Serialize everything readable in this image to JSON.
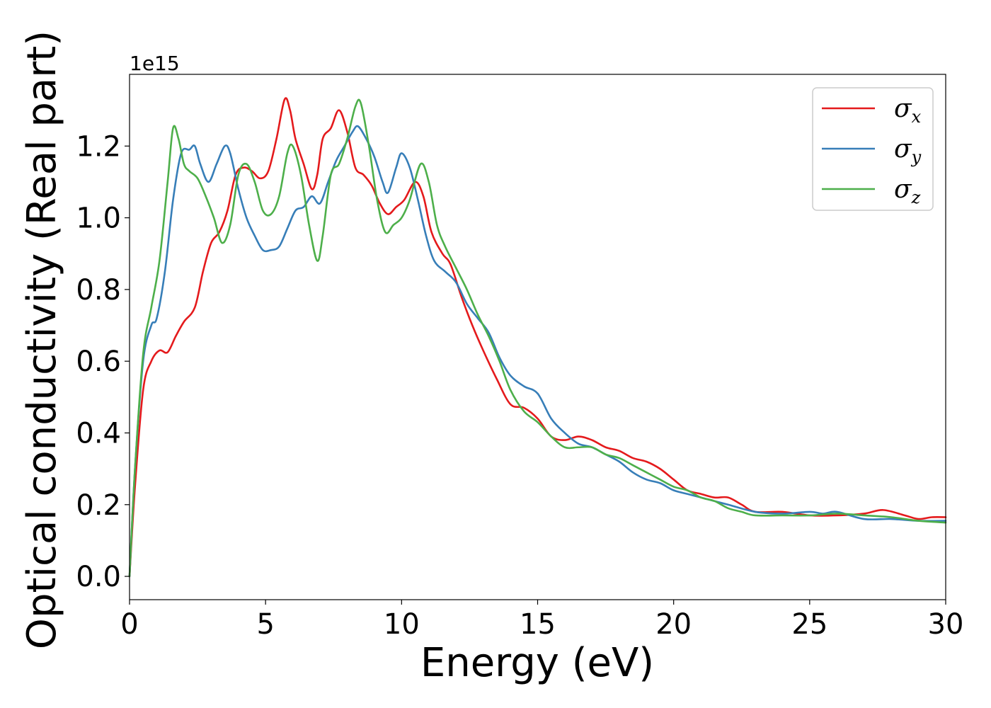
{
  "chart_data": {
    "type": "line",
    "xlabel": "Energy (eV)",
    "ylabel": "Optical conductivity (Real part)",
    "y_offset_label": "1e15",
    "xlim": [
      0,
      30
    ],
    "ylim": [
      -0.065,
      1.4
    ],
    "x_ticks": [
      0,
      5,
      10,
      15,
      20,
      25,
      30
    ],
    "x_tick_labels": [
      "0",
      "5",
      "10",
      "15",
      "20",
      "25",
      "30"
    ],
    "y_ticks": [
      0.0,
      0.2,
      0.4,
      0.6,
      0.8,
      1.0,
      1.2
    ],
    "y_tick_labels": [
      "0.0",
      "0.2",
      "0.4",
      "0.6",
      "0.8",
      "1.0",
      "1.2"
    ],
    "grid": false,
    "legend_position": "top-right",
    "series": [
      {
        "name": "σ_x",
        "symbol": "σ",
        "subscript": "x",
        "color": "#e41a1c",
        "points": [
          [
            0,
            0
          ],
          [
            0.2,
            0.25
          ],
          [
            0.5,
            0.52
          ],
          [
            0.8,
            0.6
          ],
          [
            1.1,
            0.63
          ],
          [
            1.4,
            0.625
          ],
          [
            1.7,
            0.67
          ],
          [
            2.0,
            0.71
          ],
          [
            2.4,
            0.75
          ],
          [
            2.7,
            0.85
          ],
          [
            3.0,
            0.93
          ],
          [
            3.3,
            0.96
          ],
          [
            3.6,
            1.02
          ],
          [
            3.9,
            1.12
          ],
          [
            4.2,
            1.14
          ],
          [
            4.5,
            1.13
          ],
          [
            4.8,
            1.11
          ],
          [
            5.1,
            1.13
          ],
          [
            5.4,
            1.22
          ],
          [
            5.7,
            1.33
          ],
          [
            5.9,
            1.3
          ],
          [
            6.1,
            1.22
          ],
          [
            6.4,
            1.15
          ],
          [
            6.7,
            1.08
          ],
          [
            6.9,
            1.12
          ],
          [
            7.1,
            1.22
          ],
          [
            7.4,
            1.25
          ],
          [
            7.7,
            1.3
          ],
          [
            8.0,
            1.24
          ],
          [
            8.3,
            1.14
          ],
          [
            8.6,
            1.12
          ],
          [
            8.9,
            1.09
          ],
          [
            9.2,
            1.04
          ],
          [
            9.5,
            1.01
          ],
          [
            9.8,
            1.03
          ],
          [
            10.1,
            1.05
          ],
          [
            10.5,
            1.1
          ],
          [
            10.8,
            1.06
          ],
          [
            11.1,
            0.96
          ],
          [
            11.5,
            0.9
          ],
          [
            11.8,
            0.87
          ],
          [
            12.2,
            0.78
          ],
          [
            12.6,
            0.7
          ],
          [
            13.0,
            0.63
          ],
          [
            13.5,
            0.55
          ],
          [
            14.0,
            0.48
          ],
          [
            14.5,
            0.47
          ],
          [
            15.0,
            0.44
          ],
          [
            15.5,
            0.39
          ],
          [
            16.0,
            0.38
          ],
          [
            16.5,
            0.39
          ],
          [
            17.0,
            0.38
          ],
          [
            17.5,
            0.36
          ],
          [
            18.0,
            0.35
          ],
          [
            18.5,
            0.33
          ],
          [
            19.0,
            0.32
          ],
          [
            19.5,
            0.3
          ],
          [
            20.0,
            0.27
          ],
          [
            20.5,
            0.24
          ],
          [
            21.0,
            0.23
          ],
          [
            21.5,
            0.22
          ],
          [
            22.0,
            0.22
          ],
          [
            22.5,
            0.2
          ],
          [
            23.0,
            0.18
          ],
          [
            24.0,
            0.18
          ],
          [
            25.0,
            0.17
          ],
          [
            26.0,
            0.17
          ],
          [
            27.0,
            0.175
          ],
          [
            27.7,
            0.185
          ],
          [
            28.5,
            0.17
          ],
          [
            29.0,
            0.16
          ],
          [
            29.5,
            0.165
          ],
          [
            30.0,
            0.165
          ]
        ]
      },
      {
        "name": "σ_y",
        "symbol": "σ",
        "subscript": "y",
        "color": "#377eb8",
        "points": [
          [
            0,
            0
          ],
          [
            0.2,
            0.3
          ],
          [
            0.5,
            0.6
          ],
          [
            0.8,
            0.7
          ],
          [
            1.0,
            0.72
          ],
          [
            1.3,
            0.85
          ],
          [
            1.6,
            1.05
          ],
          [
            1.9,
            1.18
          ],
          [
            2.2,
            1.19
          ],
          [
            2.4,
            1.2
          ],
          [
            2.6,
            1.15
          ],
          [
            2.9,
            1.1
          ],
          [
            3.2,
            1.15
          ],
          [
            3.5,
            1.2
          ],
          [
            3.7,
            1.18
          ],
          [
            4.0,
            1.08
          ],
          [
            4.3,
            1.0
          ],
          [
            4.6,
            0.95
          ],
          [
            4.9,
            0.91
          ],
          [
            5.2,
            0.91
          ],
          [
            5.5,
            0.92
          ],
          [
            5.8,
            0.97
          ],
          [
            6.1,
            1.02
          ],
          [
            6.4,
            1.03
          ],
          [
            6.7,
            1.06
          ],
          [
            7.0,
            1.04
          ],
          [
            7.3,
            1.1
          ],
          [
            7.6,
            1.16
          ],
          [
            7.9,
            1.2
          ],
          [
            8.2,
            1.24
          ],
          [
            8.4,
            1.255
          ],
          [
            8.7,
            1.22
          ],
          [
            9.0,
            1.17
          ],
          [
            9.3,
            1.1
          ],
          [
            9.5,
            1.07
          ],
          [
            9.8,
            1.14
          ],
          [
            10.0,
            1.18
          ],
          [
            10.3,
            1.14
          ],
          [
            10.6,
            1.05
          ],
          [
            10.9,
            0.95
          ],
          [
            11.2,
            0.88
          ],
          [
            11.6,
            0.85
          ],
          [
            12.0,
            0.82
          ],
          [
            12.4,
            0.76
          ],
          [
            12.8,
            0.72
          ],
          [
            13.2,
            0.68
          ],
          [
            13.6,
            0.61
          ],
          [
            14.0,
            0.56
          ],
          [
            14.5,
            0.53
          ],
          [
            15.0,
            0.51
          ],
          [
            15.5,
            0.44
          ],
          [
            16.0,
            0.4
          ],
          [
            16.5,
            0.37
          ],
          [
            17.0,
            0.36
          ],
          [
            17.5,
            0.34
          ],
          [
            18.0,
            0.32
          ],
          [
            18.5,
            0.29
          ],
          [
            19.0,
            0.27
          ],
          [
            19.5,
            0.26
          ],
          [
            20.0,
            0.24
          ],
          [
            20.5,
            0.23
          ],
          [
            21.0,
            0.22
          ],
          [
            22.0,
            0.2
          ],
          [
            23.0,
            0.18
          ],
          [
            24.0,
            0.175
          ],
          [
            25.0,
            0.18
          ],
          [
            25.5,
            0.175
          ],
          [
            26.0,
            0.18
          ],
          [
            27.0,
            0.16
          ],
          [
            28.0,
            0.16
          ],
          [
            29.0,
            0.155
          ],
          [
            30.0,
            0.155
          ]
        ]
      },
      {
        "name": "σ_z",
        "symbol": "σ",
        "subscript": "z",
        "color": "#4daf4a",
        "points": [
          [
            0,
            0
          ],
          [
            0.2,
            0.3
          ],
          [
            0.5,
            0.62
          ],
          [
            0.8,
            0.75
          ],
          [
            1.1,
            0.88
          ],
          [
            1.4,
            1.1
          ],
          [
            1.6,
            1.25
          ],
          [
            1.8,
            1.22
          ],
          [
            2.0,
            1.15
          ],
          [
            2.2,
            1.13
          ],
          [
            2.5,
            1.11
          ],
          [
            2.8,
            1.06
          ],
          [
            3.1,
            1.0
          ],
          [
            3.4,
            0.93
          ],
          [
            3.7,
            0.98
          ],
          [
            4.0,
            1.12
          ],
          [
            4.3,
            1.15
          ],
          [
            4.6,
            1.1
          ],
          [
            4.9,
            1.02
          ],
          [
            5.2,
            1.01
          ],
          [
            5.5,
            1.06
          ],
          [
            5.8,
            1.18
          ],
          [
            6.0,
            1.2
          ],
          [
            6.3,
            1.12
          ],
          [
            6.6,
            0.98
          ],
          [
            6.9,
            0.88
          ],
          [
            7.1,
            0.95
          ],
          [
            7.4,
            1.12
          ],
          [
            7.7,
            1.15
          ],
          [
            8.0,
            1.22
          ],
          [
            8.3,
            1.31
          ],
          [
            8.5,
            1.32
          ],
          [
            8.8,
            1.2
          ],
          [
            9.1,
            1.05
          ],
          [
            9.4,
            0.96
          ],
          [
            9.7,
            0.98
          ],
          [
            10.0,
            1.0
          ],
          [
            10.3,
            1.05
          ],
          [
            10.7,
            1.15
          ],
          [
            11.0,
            1.1
          ],
          [
            11.3,
            0.98
          ],
          [
            11.6,
            0.92
          ],
          [
            12.0,
            0.86
          ],
          [
            12.4,
            0.8
          ],
          [
            12.8,
            0.73
          ],
          [
            13.2,
            0.67
          ],
          [
            13.6,
            0.6
          ],
          [
            14.0,
            0.52
          ],
          [
            14.5,
            0.46
          ],
          [
            15.0,
            0.43
          ],
          [
            15.5,
            0.39
          ],
          [
            16.0,
            0.36
          ],
          [
            16.5,
            0.36
          ],
          [
            17.0,
            0.36
          ],
          [
            17.5,
            0.34
          ],
          [
            18.0,
            0.33
          ],
          [
            18.5,
            0.31
          ],
          [
            19.0,
            0.29
          ],
          [
            19.5,
            0.27
          ],
          [
            20.0,
            0.25
          ],
          [
            20.5,
            0.24
          ],
          [
            21.0,
            0.22
          ],
          [
            21.5,
            0.21
          ],
          [
            22.0,
            0.19
          ],
          [
            22.5,
            0.18
          ],
          [
            23.0,
            0.17
          ],
          [
            24.0,
            0.17
          ],
          [
            25.0,
            0.17
          ],
          [
            26.0,
            0.175
          ],
          [
            27.0,
            0.17
          ],
          [
            28.0,
            0.165
          ],
          [
            29.0,
            0.155
          ],
          [
            30.0,
            0.15
          ]
        ]
      }
    ]
  }
}
